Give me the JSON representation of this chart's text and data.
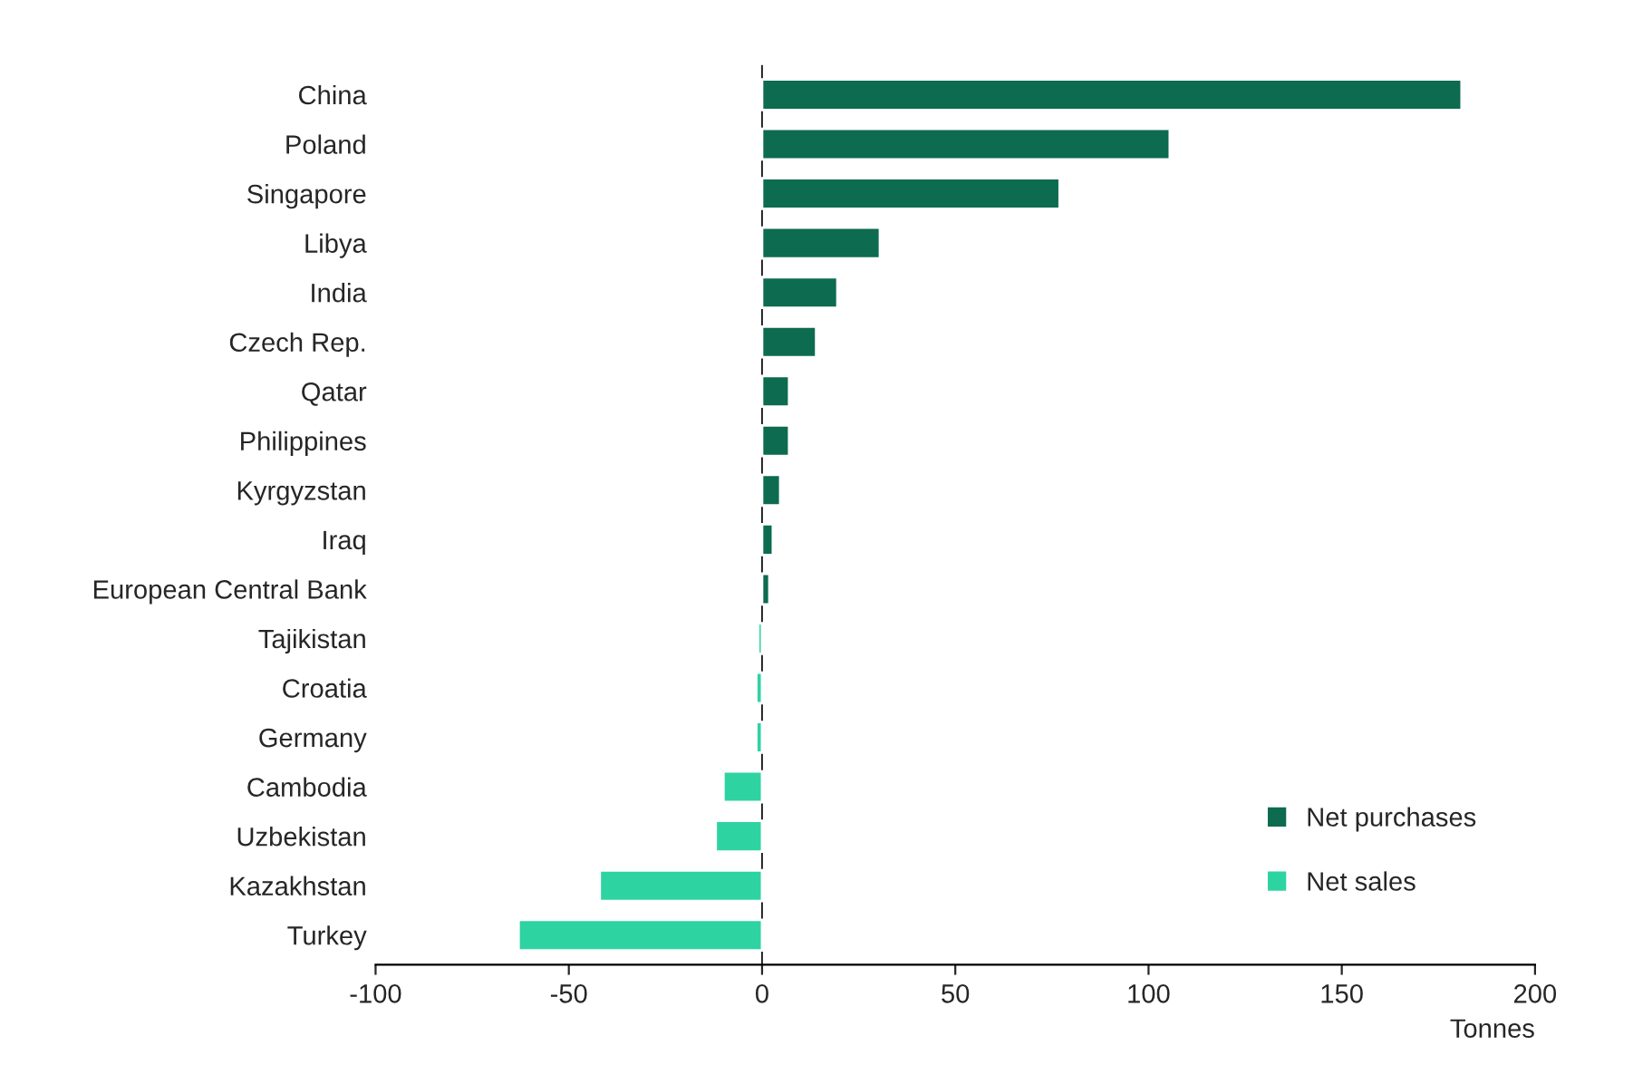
{
  "chart_data": {
    "type": "bar",
    "orientation": "horizontal",
    "xlabel": "Tonnes",
    "categories": [
      "China",
      "Poland",
      "Singapore",
      "Libya",
      "India",
      "Czech Rep.",
      "Qatar",
      "Philippines",
      "Kyrgyzstan",
      "Iraq",
      "European Central Bank",
      "Tajikistan",
      "Croatia",
      "Germany",
      "Cambodia",
      "Uzbekistan",
      "Kazakhstan",
      "Turkey"
    ],
    "series": [
      {
        "name": "Net purchases",
        "color": "#0d6b4f",
        "values": [
          181,
          105.5,
          77,
          30.5,
          19.5,
          14,
          7,
          7,
          4.7,
          2.8,
          1.9,
          null,
          null,
          null,
          null,
          null,
          null,
          null
        ]
      },
      {
        "name": "Net sales",
        "color": "#2ed3a2",
        "values": [
          null,
          null,
          null,
          null,
          null,
          null,
          null,
          null,
          null,
          null,
          null,
          -1,
          -1.5,
          -1.5,
          -10,
          -12,
          -42,
          -63
        ]
      }
    ],
    "xlim": [
      -100,
      200
    ],
    "xticks": [
      -100,
      -50,
      0,
      50,
      100,
      150,
      200
    ],
    "ref_lines": [
      {
        "axis": "x",
        "value": 0,
        "color": "#000000"
      }
    ],
    "grid": false,
    "legend": "bottom right"
  }
}
